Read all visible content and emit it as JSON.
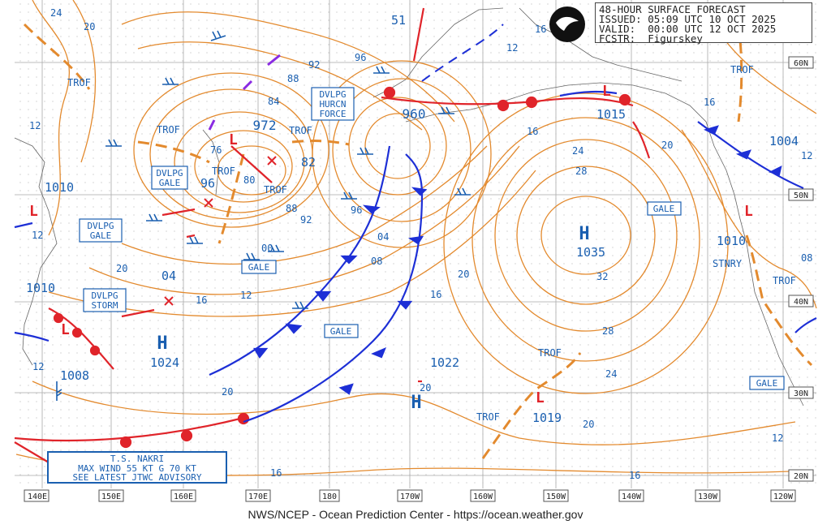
{
  "header": {
    "title": "48-HOUR SURFACE FORECAST",
    "issued": "ISSUED: 05:09 UTC 10 OCT 2025",
    "valid": "VALID:  00:00 UTC 12 OCT 2025",
    "forecaster": "FCSTR:  Figurskey"
  },
  "footer": "NWS/NCEP - Ocean Prediction Center - https://ocean.weather.gov",
  "storm_box": {
    "line1": "T.S. NAKRI",
    "line2": "MAX WIND 55 KT G 70 KT",
    "line3": "SEE LATEST JTWC ADVISORY"
  },
  "lon_labels": [
    "140E",
    "150E",
    "160E",
    "170E",
    "180",
    "170W",
    "160W",
    "150W",
    "140W",
    "130W",
    "120W"
  ],
  "lat_labels": [
    "60N",
    "50N",
    "40N",
    "30N",
    "20N"
  ],
  "pressure_centers": [
    {
      "type": "H",
      "value": "1035"
    },
    {
      "type": "H",
      "value": "1024"
    },
    {
      "type": "H",
      "value": "1022"
    },
    {
      "type": "L",
      "value": "960"
    },
    {
      "type": "L",
      "value": "972"
    },
    {
      "type": "L",
      "value": "1015"
    },
    {
      "type": "L",
      "value": "1019"
    },
    {
      "type": "L",
      "value": "1010"
    },
    {
      "type": "L",
      "value": "1010"
    },
    {
      "type": "L",
      "value": "1008"
    },
    {
      "type": "L",
      "value": "1004"
    },
    {
      "type": "L",
      "value": "1010"
    }
  ],
  "warnings": {
    "gale": "GALE",
    "dvlpg_gale": [
      "DVLPG",
      "GALE"
    ],
    "dvlpg_storm": [
      "DVLPG",
      "STORM"
    ],
    "dvlpg_hurcn": [
      "DVLPG",
      "HURCN",
      "FORCE"
    ]
  },
  "labels": {
    "trof": "TROF",
    "stnry": "STNRY"
  },
  "isobar_labels": [
    "24",
    "20",
    "12",
    "16",
    "92",
    "96",
    "88",
    "84",
    "76",
    "80",
    "82",
    "88",
    "92",
    "96",
    "00",
    "04",
    "08",
    "12",
    "16",
    "20",
    "04",
    "16",
    "20",
    "24",
    "28",
    "32",
    "28",
    "24",
    "20",
    "16",
    "20",
    "16",
    "16",
    "12",
    "08",
    "12",
    "20",
    "12",
    "16",
    "51"
  ],
  "colors": {
    "isobar": "#e38a2e",
    "cold_front": "#1d2fd6",
    "warm_front": "#e0242a",
    "label": "#1a5fb0",
    "wind_barb": "#1a5fb0",
    "grid": "#b0b0b0"
  }
}
